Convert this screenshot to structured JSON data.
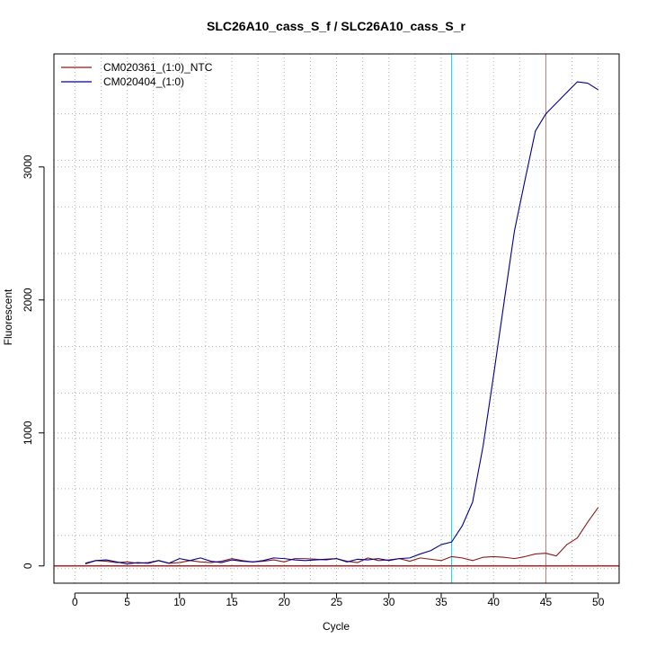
{
  "chart_data": {
    "type": "line",
    "title": "SLC26A10_cass_S_f / SLC26A10_cass_S_r",
    "xlabel": "Cycle",
    "ylabel": "Fluorescent",
    "xlim": [
      -2,
      52
    ],
    "ylim": [
      -130,
      3850
    ],
    "x_ticks": [
      0,
      5,
      10,
      15,
      20,
      25,
      30,
      35,
      40,
      45,
      50
    ],
    "y_ticks": [
      0,
      1000,
      2000,
      3000
    ],
    "x_grid": [
      2.5,
      7.5,
      12.5,
      17.5,
      22.5,
      27.5,
      32.5,
      37.5,
      42.5,
      47.5
    ],
    "y_grid": [
      -20,
      230,
      580,
      960,
      1300,
      1650,
      2350,
      2700,
      3050,
      3400
    ],
    "grid": true,
    "legend_position": "top-left",
    "vertical_lines": [
      {
        "x": 36,
        "color": "#00d5d5"
      },
      {
        "x": 45,
        "color": "#c87878"
      }
    ],
    "baseline": {
      "y": 0,
      "color": "#b22222"
    },
    "series": [
      {
        "name": "CM020361_(1:0)_NTC",
        "color": "#8b1a1a",
        "x": [
          1,
          2,
          3,
          4,
          5,
          6,
          7,
          8,
          9,
          10,
          11,
          12,
          13,
          14,
          15,
          16,
          17,
          18,
          19,
          20,
          21,
          22,
          23,
          24,
          25,
          26,
          27,
          28,
          29,
          30,
          31,
          32,
          33,
          34,
          35,
          36,
          37,
          38,
          39,
          40,
          41,
          42,
          43,
          44,
          45,
          46,
          47,
          48,
          49,
          50
        ],
        "values": [
          15,
          40,
          35,
          25,
          30,
          20,
          25,
          40,
          20,
          25,
          40,
          30,
          25,
          35,
          55,
          40,
          30,
          35,
          45,
          30,
          55,
          55,
          50,
          45,
          55,
          35,
          25,
          60,
          40,
          45,
          55,
          35,
          60,
          50,
          40,
          70,
          60,
          40,
          65,
          70,
          65,
          55,
          70,
          90,
          95,
          75,
          160,
          210,
          330,
          440
        ]
      },
      {
        "name": "CM020404_(1:0)",
        "color": "#00008b",
        "x": [
          1,
          2,
          3,
          4,
          5,
          6,
          7,
          8,
          9,
          10,
          11,
          12,
          13,
          14,
          15,
          16,
          17,
          18,
          19,
          20,
          21,
          22,
          23,
          24,
          25,
          26,
          27,
          28,
          29,
          30,
          31,
          32,
          33,
          34,
          35,
          36,
          37,
          38,
          39,
          40,
          41,
          42,
          43,
          44,
          45,
          46,
          47,
          48,
          49,
          50
        ],
        "values": [
          20,
          40,
          45,
          30,
          15,
          25,
          20,
          40,
          20,
          55,
          40,
          60,
          35,
          25,
          45,
          35,
          30,
          40,
          60,
          55,
          45,
          40,
          45,
          50,
          55,
          30,
          50,
          45,
          55,
          40,
          55,
          60,
          90,
          115,
          160,
          180,
          300,
          480,
          900,
          1430,
          1980,
          2520,
          2900,
          3270,
          3400,
          3480,
          3560,
          3640,
          3630,
          3580
        ]
      }
    ]
  }
}
